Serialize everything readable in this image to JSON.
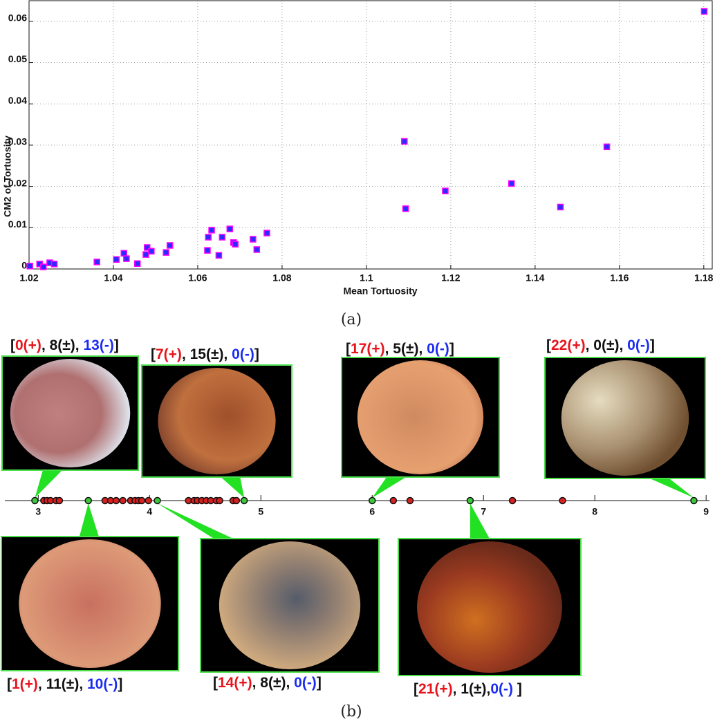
{
  "chart_data": [
    {
      "type": "scatter",
      "x_label": "Mean Tortuosity",
      "y_label": "CM2 of Tortuosity",
      "x": [
        1.0202,
        1.0225,
        1.0234,
        1.0249,
        1.026,
        1.0361,
        1.0407,
        1.0425,
        1.0431,
        1.0457,
        1.0477,
        1.048,
        1.049,
        1.0525,
        1.0534,
        1.0623,
        1.0625,
        1.0633,
        1.065,
        1.0658,
        1.0676,
        1.0685,
        1.0689,
        1.0731,
        1.074,
        1.0764,
        1.109,
        1.1093,
        1.1187,
        1.1344,
        1.146,
        1.157,
        1.1801
      ],
      "values": [
        0.0007,
        0.0012,
        0.0005,
        0.0015,
        0.0012,
        0.0017,
        0.0023,
        0.0038,
        0.0025,
        0.0013,
        0.0035,
        0.0052,
        0.0043,
        0.004,
        0.0057,
        0.0045,
        0.0077,
        0.0094,
        0.0033,
        0.0077,
        0.0097,
        0.0064,
        0.006,
        0.0072,
        0.0047,
        0.0087,
        0.0309,
        0.0146,
        0.0189,
        0.0207,
        0.015,
        0.0296,
        0.0624
      ],
      "color": "#2b2bff",
      "edge_color": "#ff00ff",
      "xlim": [
        1.02,
        1.182
      ],
      "xticks": [
        1.02,
        1.04,
        1.06,
        1.08,
        1.1,
        1.12,
        1.14,
        1.16,
        1.18
      ],
      "ylim": [
        0,
        0.065
      ],
      "yticks": [
        0,
        0.01,
        0.02,
        0.03,
        0.04,
        0.05,
        0.06
      ],
      "grid": true
    },
    {
      "type": "strip",
      "series": [
        {
          "color": "#3cc83c",
          "values": [
            2.97,
            3.45,
            4.07,
            4.85,
            6.0,
            6.88,
            8.89
          ]
        },
        {
          "color": "#d82020",
          "values": [
            3.05,
            3.08,
            3.11,
            3.16,
            3.19,
            3.6,
            3.65,
            3.7,
            3.76,
            3.83,
            3.87,
            3.9,
            3.93,
            3.99,
            4.35,
            4.4,
            4.43,
            4.47,
            4.51,
            4.55,
            4.6,
            4.63,
            4.75,
            4.78,
            6.19,
            6.34,
            7.26,
            7.71
          ]
        }
      ],
      "xlim": [
        2.7,
        9.03
      ],
      "xticks": [
        3,
        4,
        5,
        6,
        7,
        8,
        9
      ]
    }
  ],
  "captions": [
    "(a)",
    "(b)"
  ],
  "thumbnails": [
    {
      "parts": [
        {
          "text": "[",
          "color": "#111"
        },
        {
          "text": "0(+)",
          "color": "#e8141c"
        },
        {
          "text": ", 8(±), ",
          "color": "#111"
        },
        {
          "text": "13(-)",
          "color": "#1a2cf0"
        },
        {
          "text": "]",
          "color": "#111"
        }
      ]
    },
    {
      "parts": [
        {
          "text": "[",
          "color": "#111"
        },
        {
          "text": "7(+)",
          "color": "#e8141c"
        },
        {
          "text": ", 15(±), ",
          "color": "#111"
        },
        {
          "text": "0(-)",
          "color": "#1a2cf0"
        },
        {
          "text": "]",
          "color": "#111"
        }
      ]
    },
    {
      "parts": [
        {
          "text": "[",
          "color": "#111"
        },
        {
          "text": "17(+)",
          "color": "#e8141c"
        },
        {
          "text": ", 5(±), ",
          "color": "#111"
        },
        {
          "text": "0(-)",
          "color": "#1a2cf0"
        },
        {
          "text": "]",
          "color": "#111"
        }
      ]
    },
    {
      "parts": [
        {
          "text": "[",
          "color": "#111"
        },
        {
          "text": "22(+)",
          "color": "#e8141c"
        },
        {
          "text": ", 0(±), ",
          "color": "#111"
        },
        {
          "text": "0(-)",
          "color": "#1a2cf0"
        },
        {
          "text": "]",
          "color": "#111"
        }
      ]
    },
    {
      "parts": [
        {
          "text": "[",
          "color": "#111"
        },
        {
          "text": "1(+)",
          "color": "#e8141c"
        },
        {
          "text": ", 11(±), ",
          "color": "#111"
        },
        {
          "text": "10(-)",
          "color": "#1a2cf0"
        },
        {
          "text": "]",
          "color": "#111"
        }
      ]
    },
    {
      "parts": [
        {
          "text": "[",
          "color": "#111"
        },
        {
          "text": "14(+)",
          "color": "#e8141c"
        },
        {
          "text": ", 8(±), ",
          "color": "#111"
        },
        {
          "text": "0(-)",
          "color": "#1a2cf0"
        },
        {
          "text": "]",
          "color": "#111"
        }
      ]
    },
    {
      "parts": [
        {
          "text": "[",
          "color": "#111"
        },
        {
          "text": "21(+)",
          "color": "#e8141c"
        },
        {
          "text": ", 1(±),",
          "color": "#111"
        },
        {
          "text": "0(-)",
          "color": "#1a2cf0"
        },
        {
          "text": " ]",
          "color": "#111"
        }
      ]
    }
  ]
}
